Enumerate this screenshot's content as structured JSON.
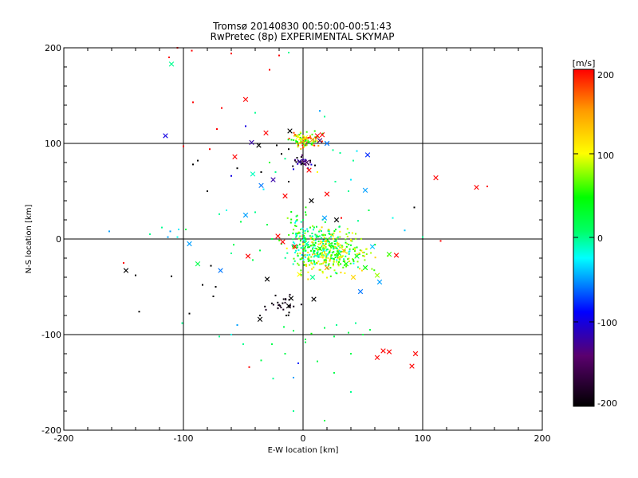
{
  "chart_data": {
    "type": "scatter",
    "title": "Tromsø 20140830 00:50:00-00:51:43",
    "subtitle": "RwPretec (8p) EXPERIMENTAL SKYMAP",
    "xlabel": "E-W location [km]",
    "ylabel": "N-S location [km]",
    "xlim": [
      -200,
      200
    ],
    "ylim": [
      -200,
      200
    ],
    "xticks": [
      "-200",
      "-100",
      "0",
      "100",
      "200"
    ],
    "yticks": [
      "-200",
      "-100",
      "0",
      "100",
      "200"
    ],
    "grid": true,
    "colorbar": {
      "title": "[m/s]",
      "range": [
        -200,
        200
      ],
      "ticks": [
        "200",
        "100",
        "0",
        "-100",
        "-200"
      ],
      "colormap": "black-purple-blue-cyan-green-yellow-red"
    },
    "cross_points": [
      [
        -110,
        183,
        0
      ],
      [
        -115,
        108,
        -100
      ],
      [
        -48,
        146,
        200
      ],
      [
        -31,
        111,
        200
      ],
      [
        -57,
        86,
        200
      ],
      [
        -42,
        68,
        -10
      ],
      [
        -37,
        98,
        -200
      ],
      [
        -43,
        101,
        -120
      ],
      [
        -11,
        113,
        -200
      ],
      [
        -4,
        107,
        100
      ],
      [
        2,
        106,
        100
      ],
      [
        8,
        104,
        150
      ],
      [
        12,
        108,
        200
      ],
      [
        16,
        109,
        200
      ],
      [
        14,
        103,
        -150
      ],
      [
        20,
        100,
        -60
      ],
      [
        54,
        88,
        -80
      ],
      [
        -3,
        81,
        -120
      ],
      [
        3,
        80,
        -150
      ],
      [
        5,
        72,
        200
      ],
      [
        -25,
        62,
        -120
      ],
      [
        -35,
        56,
        -60
      ],
      [
        -15,
        45,
        200
      ],
      [
        7,
        40,
        -200
      ],
      [
        20,
        47,
        200
      ],
      [
        52,
        51,
        -50
      ],
      [
        111,
        64,
        200
      ],
      [
        145,
        54,
        200
      ],
      [
        -148,
        -33,
        -200
      ],
      [
        -95,
        -5,
        -50
      ],
      [
        -88,
        -26,
        20
      ],
      [
        -69,
        -33,
        -60
      ],
      [
        -46,
        -18,
        200
      ],
      [
        -48,
        25,
        -50
      ],
      [
        -30,
        -42,
        -200
      ],
      [
        -17,
        -3,
        200
      ],
      [
        -21,
        3,
        200
      ],
      [
        28,
        20,
        -200
      ],
      [
        18,
        22,
        -50
      ],
      [
        -7,
        -8,
        200
      ],
      [
        3,
        -5,
        -10
      ],
      [
        -12,
        -70,
        -200
      ],
      [
        -10,
        -62,
        -200
      ],
      [
        -36,
        -84,
        -200
      ],
      [
        9,
        -63,
        -200
      ],
      [
        -3,
        -37,
        100
      ],
      [
        14,
        -10,
        60
      ],
      [
        30,
        -15,
        30
      ],
      [
        36,
        -26,
        40
      ],
      [
        45,
        -18,
        30
      ],
      [
        52,
        -30,
        50
      ],
      [
        62,
        -38,
        80
      ],
      [
        72,
        -16,
        60
      ],
      [
        78,
        -17,
        200
      ],
      [
        64,
        -45,
        -50
      ],
      [
        48,
        -55,
        -60
      ],
      [
        58,
        -8,
        -40
      ],
      [
        62,
        -124,
        200
      ],
      [
        67,
        -117,
        200
      ],
      [
        72,
        -118,
        200
      ],
      [
        94,
        -120,
        200
      ],
      [
        91,
        -133,
        200
      ],
      [
        34,
        -12,
        130
      ],
      [
        20,
        -30,
        150
      ],
      [
        8,
        -40,
        0
      ],
      [
        42,
        -40,
        120
      ]
    ],
    "dot_points": [
      [
        -105,
        200,
        200
      ],
      [
        -112,
        190,
        200
      ],
      [
        -93,
        197,
        200
      ],
      [
        -60,
        194,
        200
      ],
      [
        -20,
        192,
        200
      ],
      [
        -12,
        195,
        0
      ],
      [
        -28,
        177,
        200
      ],
      [
        -92,
        143,
        200
      ],
      [
        -68,
        137,
        200
      ],
      [
        -72,
        115,
        200
      ],
      [
        -100,
        97,
        200
      ],
      [
        -78,
        94,
        200
      ],
      [
        -92,
        78,
        -200
      ],
      [
        -88,
        82,
        -200
      ],
      [
        -48,
        118,
        -100
      ],
      [
        -40,
        132,
        0
      ],
      [
        -22,
        98,
        -200
      ],
      [
        -12,
        94,
        -200
      ],
      [
        -18,
        89,
        -200
      ],
      [
        -28,
        80,
        40
      ],
      [
        -35,
        70,
        -200
      ],
      [
        -55,
        74,
        -200
      ],
      [
        -60,
        66,
        -100
      ],
      [
        -80,
        50,
        -200
      ],
      [
        -15,
        84,
        0
      ],
      [
        -23,
        70,
        0
      ],
      [
        -33,
        52,
        -30
      ],
      [
        -12,
        60,
        -200
      ],
      [
        -5,
        85,
        -200
      ],
      [
        -1,
        79,
        -200
      ],
      [
        6,
        82,
        -200
      ],
      [
        10,
        77,
        -200
      ],
      [
        -8,
        73,
        -100
      ],
      [
        12,
        70,
        100
      ],
      [
        14,
        134,
        -50
      ],
      [
        18,
        128,
        0
      ],
      [
        25,
        93,
        0
      ],
      [
        31,
        90,
        0
      ],
      [
        42,
        82,
        0
      ],
      [
        45,
        92,
        -30
      ],
      [
        40,
        62,
        -30
      ],
      [
        27,
        60,
        0
      ],
      [
        38,
        50,
        0
      ],
      [
        32,
        22,
        200
      ],
      [
        46,
        19,
        0
      ],
      [
        55,
        30,
        20
      ],
      [
        75,
        22,
        -20
      ],
      [
        85,
        9,
        -40
      ],
      [
        93,
        33,
        -200
      ],
      [
        100,
        2,
        0
      ],
      [
        115,
        -2,
        200
      ],
      [
        154,
        55,
        200
      ],
      [
        -162,
        8,
        -50
      ],
      [
        -150,
        -25,
        200
      ],
      [
        -140,
        -38,
        -200
      ],
      [
        -137,
        -76,
        -200
      ],
      [
        -128,
        5,
        0
      ],
      [
        -118,
        12,
        0
      ],
      [
        -111,
        8,
        -50
      ],
      [
        -113,
        2,
        -50
      ],
      [
        -105,
        2,
        -20
      ],
      [
        -104,
        10,
        -30
      ],
      [
        -98,
        10,
        20
      ],
      [
        -110,
        -39,
        -200
      ],
      [
        -95,
        -78,
        -200
      ],
      [
        -101,
        -88,
        0
      ],
      [
        -84,
        -48,
        -200
      ],
      [
        -77,
        -28,
        -200
      ],
      [
        -73,
        -50,
        -200
      ],
      [
        -75,
        -60,
        -200
      ],
      [
        -60,
        -15,
        0
      ],
      [
        -58,
        -6,
        20
      ],
      [
        -52,
        18,
        20
      ],
      [
        -70,
        26,
        0
      ],
      [
        -64,
        30,
        -20
      ],
      [
        -40,
        28,
        0
      ],
      [
        -30,
        15,
        20
      ],
      [
        -26,
        0,
        20
      ],
      [
        -18,
        -5,
        40
      ],
      [
        -36,
        -12,
        20
      ],
      [
        -42,
        -22,
        20
      ],
      [
        -70,
        -102,
        0
      ],
      [
        -60,
        -100,
        -20
      ],
      [
        -55,
        -90,
        -50
      ],
      [
        -50,
        -110,
        0
      ],
      [
        -45,
        -134,
        200
      ],
      [
        -35,
        -127,
        20
      ],
      [
        -26,
        -110,
        20
      ],
      [
        -15,
        -120,
        20
      ],
      [
        -8,
        -145,
        -50
      ],
      [
        -25,
        -146,
        0
      ],
      [
        -36,
        -80,
        -200
      ],
      [
        -14,
        -80,
        -200
      ],
      [
        -8,
        -96,
        20
      ],
      [
        2,
        -105,
        20
      ],
      [
        -4,
        -130,
        -80
      ],
      [
        2,
        -108,
        20
      ],
      [
        7,
        -99,
        50
      ],
      [
        18,
        -93,
        20
      ],
      [
        26,
        -102,
        20
      ],
      [
        28,
        -90,
        0
      ],
      [
        38,
        -98,
        20
      ],
      [
        40,
        -120,
        20
      ],
      [
        44,
        -88,
        0
      ],
      [
        50,
        -100,
        20
      ],
      [
        56,
        -95,
        20
      ],
      [
        40,
        -160,
        0
      ],
      [
        26,
        -140,
        20
      ],
      [
        12,
        -128,
        20
      ],
      [
        18,
        -190,
        20
      ],
      [
        -8,
        -180,
        0
      ],
      [
        -16,
        -92,
        20
      ],
      [
        0,
        20,
        20
      ],
      [
        2,
        28,
        40
      ],
      [
        -2,
        10,
        20
      ],
      [
        4,
        8,
        20
      ],
      [
        -5,
        20,
        60
      ],
      [
        6,
        12,
        60
      ],
      [
        -6,
        2,
        0
      ],
      [
        8,
        0,
        40
      ]
    ],
    "clusters": [
      {
        "x": 0,
        "y": 103,
        "sx": 7,
        "sy": 4,
        "n": 90,
        "vmin": 20,
        "vmax": 200
      },
      {
        "x": 0,
        "y": 80,
        "sx": 4,
        "sy": 2.5,
        "n": 25,
        "vmin": -200,
        "vmax": -100
      },
      {
        "x": 17,
        "y": -10,
        "sx": 13,
        "sy": 11,
        "n": 320,
        "vmin": -30,
        "vmax": 130
      },
      {
        "x": 32,
        "y": -18,
        "sx": 17,
        "sy": 11,
        "n": 110,
        "vmin": 50,
        "vmax": 130
      },
      {
        "x": -3,
        "y": 8,
        "sx": 5,
        "sy": 12,
        "n": 45,
        "vmin": -30,
        "vmax": 80
      },
      {
        "x": -18,
        "y": -70,
        "sx": 7,
        "sy": 8,
        "n": 26,
        "vmin": -200,
        "vmax": -180
      }
    ]
  }
}
